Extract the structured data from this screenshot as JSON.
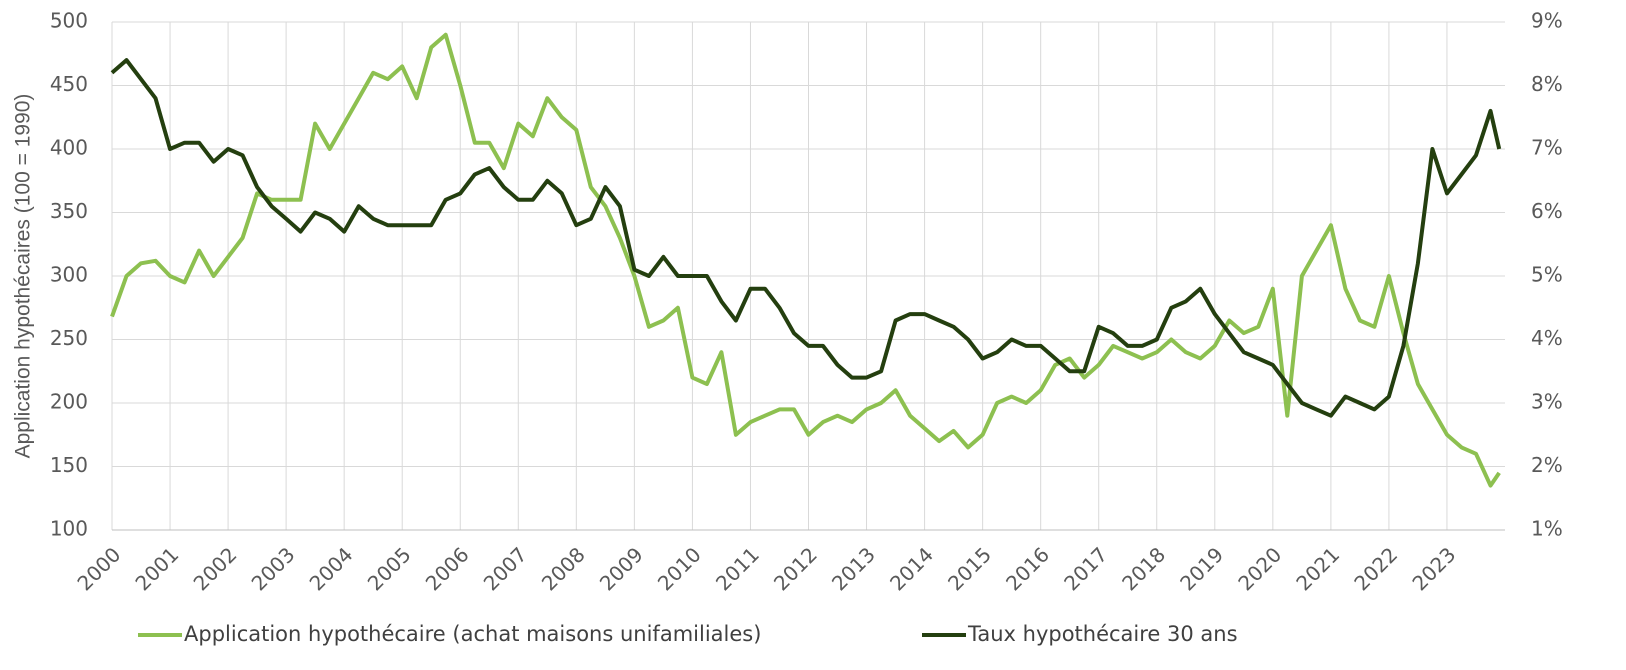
{
  "chart_data": {
    "type": "line",
    "y_label": "Application hypothécaires (100 = 1990)",
    "x": [
      2000,
      2000.25,
      2000.5,
      2000.75,
      2001,
      2001.25,
      2001.5,
      2001.75,
      2002,
      2002.25,
      2002.5,
      2002.75,
      2003,
      2003.25,
      2003.5,
      2003.75,
      2004,
      2004.25,
      2004.5,
      2004.75,
      2005,
      2005.25,
      2005.5,
      2005.75,
      2006,
      2006.25,
      2006.5,
      2006.75,
      2007,
      2007.25,
      2007.5,
      2007.75,
      2008,
      2008.25,
      2008.5,
      2008.75,
      2009,
      2009.25,
      2009.5,
      2009.75,
      2010,
      2010.25,
      2010.5,
      2010.75,
      2011,
      2011.25,
      2011.5,
      2011.75,
      2012,
      2012.25,
      2012.5,
      2012.75,
      2013,
      2013.25,
      2013.5,
      2013.75,
      2014,
      2014.25,
      2014.5,
      2014.75,
      2015,
      2015.25,
      2015.5,
      2015.75,
      2016,
      2016.25,
      2016.5,
      2016.75,
      2017,
      2017.25,
      2017.5,
      2017.75,
      2018,
      2018.25,
      2018.5,
      2018.75,
      2019,
      2019.25,
      2019.5,
      2019.75,
      2020,
      2020.25,
      2020.5,
      2020.75,
      2021,
      2021.25,
      2021.5,
      2021.75,
      2022,
      2022.25,
      2022.5,
      2022.75,
      2023,
      2023.25,
      2023.5,
      2023.75,
      2023.9
    ],
    "series": [
      {
        "name": "Application hypothécaire (achat maisons unifamiliales)",
        "color": "#8dc050",
        "axis": "y",
        "values": [
          268,
          300,
          310,
          312,
          300,
          295,
          320,
          300,
          315,
          330,
          365,
          360,
          360,
          360,
          420,
          400,
          420,
          440,
          460,
          455,
          465,
          440,
          480,
          490,
          450,
          405,
          405,
          385,
          420,
          410,
          440,
          425,
          415,
          370,
          355,
          330,
          300,
          260,
          265,
          275,
          220,
          215,
          240,
          175,
          185,
          190,
          195,
          195,
          175,
          185,
          190,
          185,
          195,
          200,
          210,
          190,
          180,
          170,
          178,
          165,
          175,
          200,
          205,
          200,
          210,
          230,
          235,
          220,
          230,
          245,
          240,
          235,
          240,
          250,
          240,
          235,
          245,
          265,
          255,
          260,
          290,
          190,
          300,
          320,
          340,
          290,
          265,
          260,
          300,
          255,
          215,
          195,
          175,
          165,
          160,
          135,
          145
        ]
      },
      {
        "name": "Taux hypothécaire 30 ans",
        "color": "#243f0f",
        "axis": "y2",
        "values": [
          8.2,
          8.4,
          8.1,
          7.8,
          7.0,
          7.1,
          7.1,
          6.8,
          7.0,
          6.9,
          6.4,
          6.1,
          5.9,
          5.7,
          6.0,
          5.9,
          5.7,
          6.1,
          5.9,
          5.8,
          5.8,
          5.8,
          5.8,
          6.2,
          6.3,
          6.6,
          6.7,
          6.4,
          6.2,
          6.2,
          6.5,
          6.3,
          5.8,
          5.9,
          6.4,
          6.1,
          5.1,
          5.0,
          5.3,
          5.0,
          5.0,
          5.0,
          4.6,
          4.3,
          4.8,
          4.8,
          4.5,
          4.1,
          3.9,
          3.9,
          3.6,
          3.4,
          3.4,
          3.5,
          4.3,
          4.4,
          4.4,
          4.3,
          4.2,
          4.0,
          3.7,
          3.8,
          4.0,
          3.9,
          3.9,
          3.7,
          3.5,
          3.5,
          4.2,
          4.1,
          3.9,
          3.9,
          4.0,
          4.5,
          4.6,
          4.8,
          4.4,
          4.1,
          3.8,
          3.7,
          3.6,
          3.3,
          3.0,
          2.9,
          2.8,
          3.1,
          3.0,
          2.9,
          3.1,
          3.9,
          5.2,
          7.0,
          6.3,
          6.6,
          6.9,
          7.6,
          7.0
        ]
      }
    ],
    "xlim": [
      2000,
      2024
    ],
    "xticks": [
      2000,
      2001,
      2002,
      2003,
      2004,
      2005,
      2006,
      2007,
      2008,
      2009,
      2010,
      2011,
      2012,
      2013,
      2014,
      2015,
      2016,
      2017,
      2018,
      2019,
      2020,
      2021,
      2022,
      2023
    ],
    "ylim": [
      100,
      500
    ],
    "yticks": [
      100,
      150,
      200,
      250,
      300,
      350,
      400,
      450,
      500
    ],
    "y2lim": [
      1,
      9
    ],
    "y2ticks": [
      {
        "value": 1,
        "label": "1%"
      },
      {
        "value": 2,
        "label": "2%"
      },
      {
        "value": 3,
        "label": "3%"
      },
      {
        "value": 4,
        "label": "4%"
      },
      {
        "value": 5,
        "label": "5%"
      },
      {
        "value": 6,
        "label": "6%"
      },
      {
        "value": 7,
        "label": "7%"
      },
      {
        "value": 8,
        "label": "8%"
      },
      {
        "value": 9,
        "label": "9%"
      }
    ],
    "grid": true,
    "legend": "bottom"
  }
}
